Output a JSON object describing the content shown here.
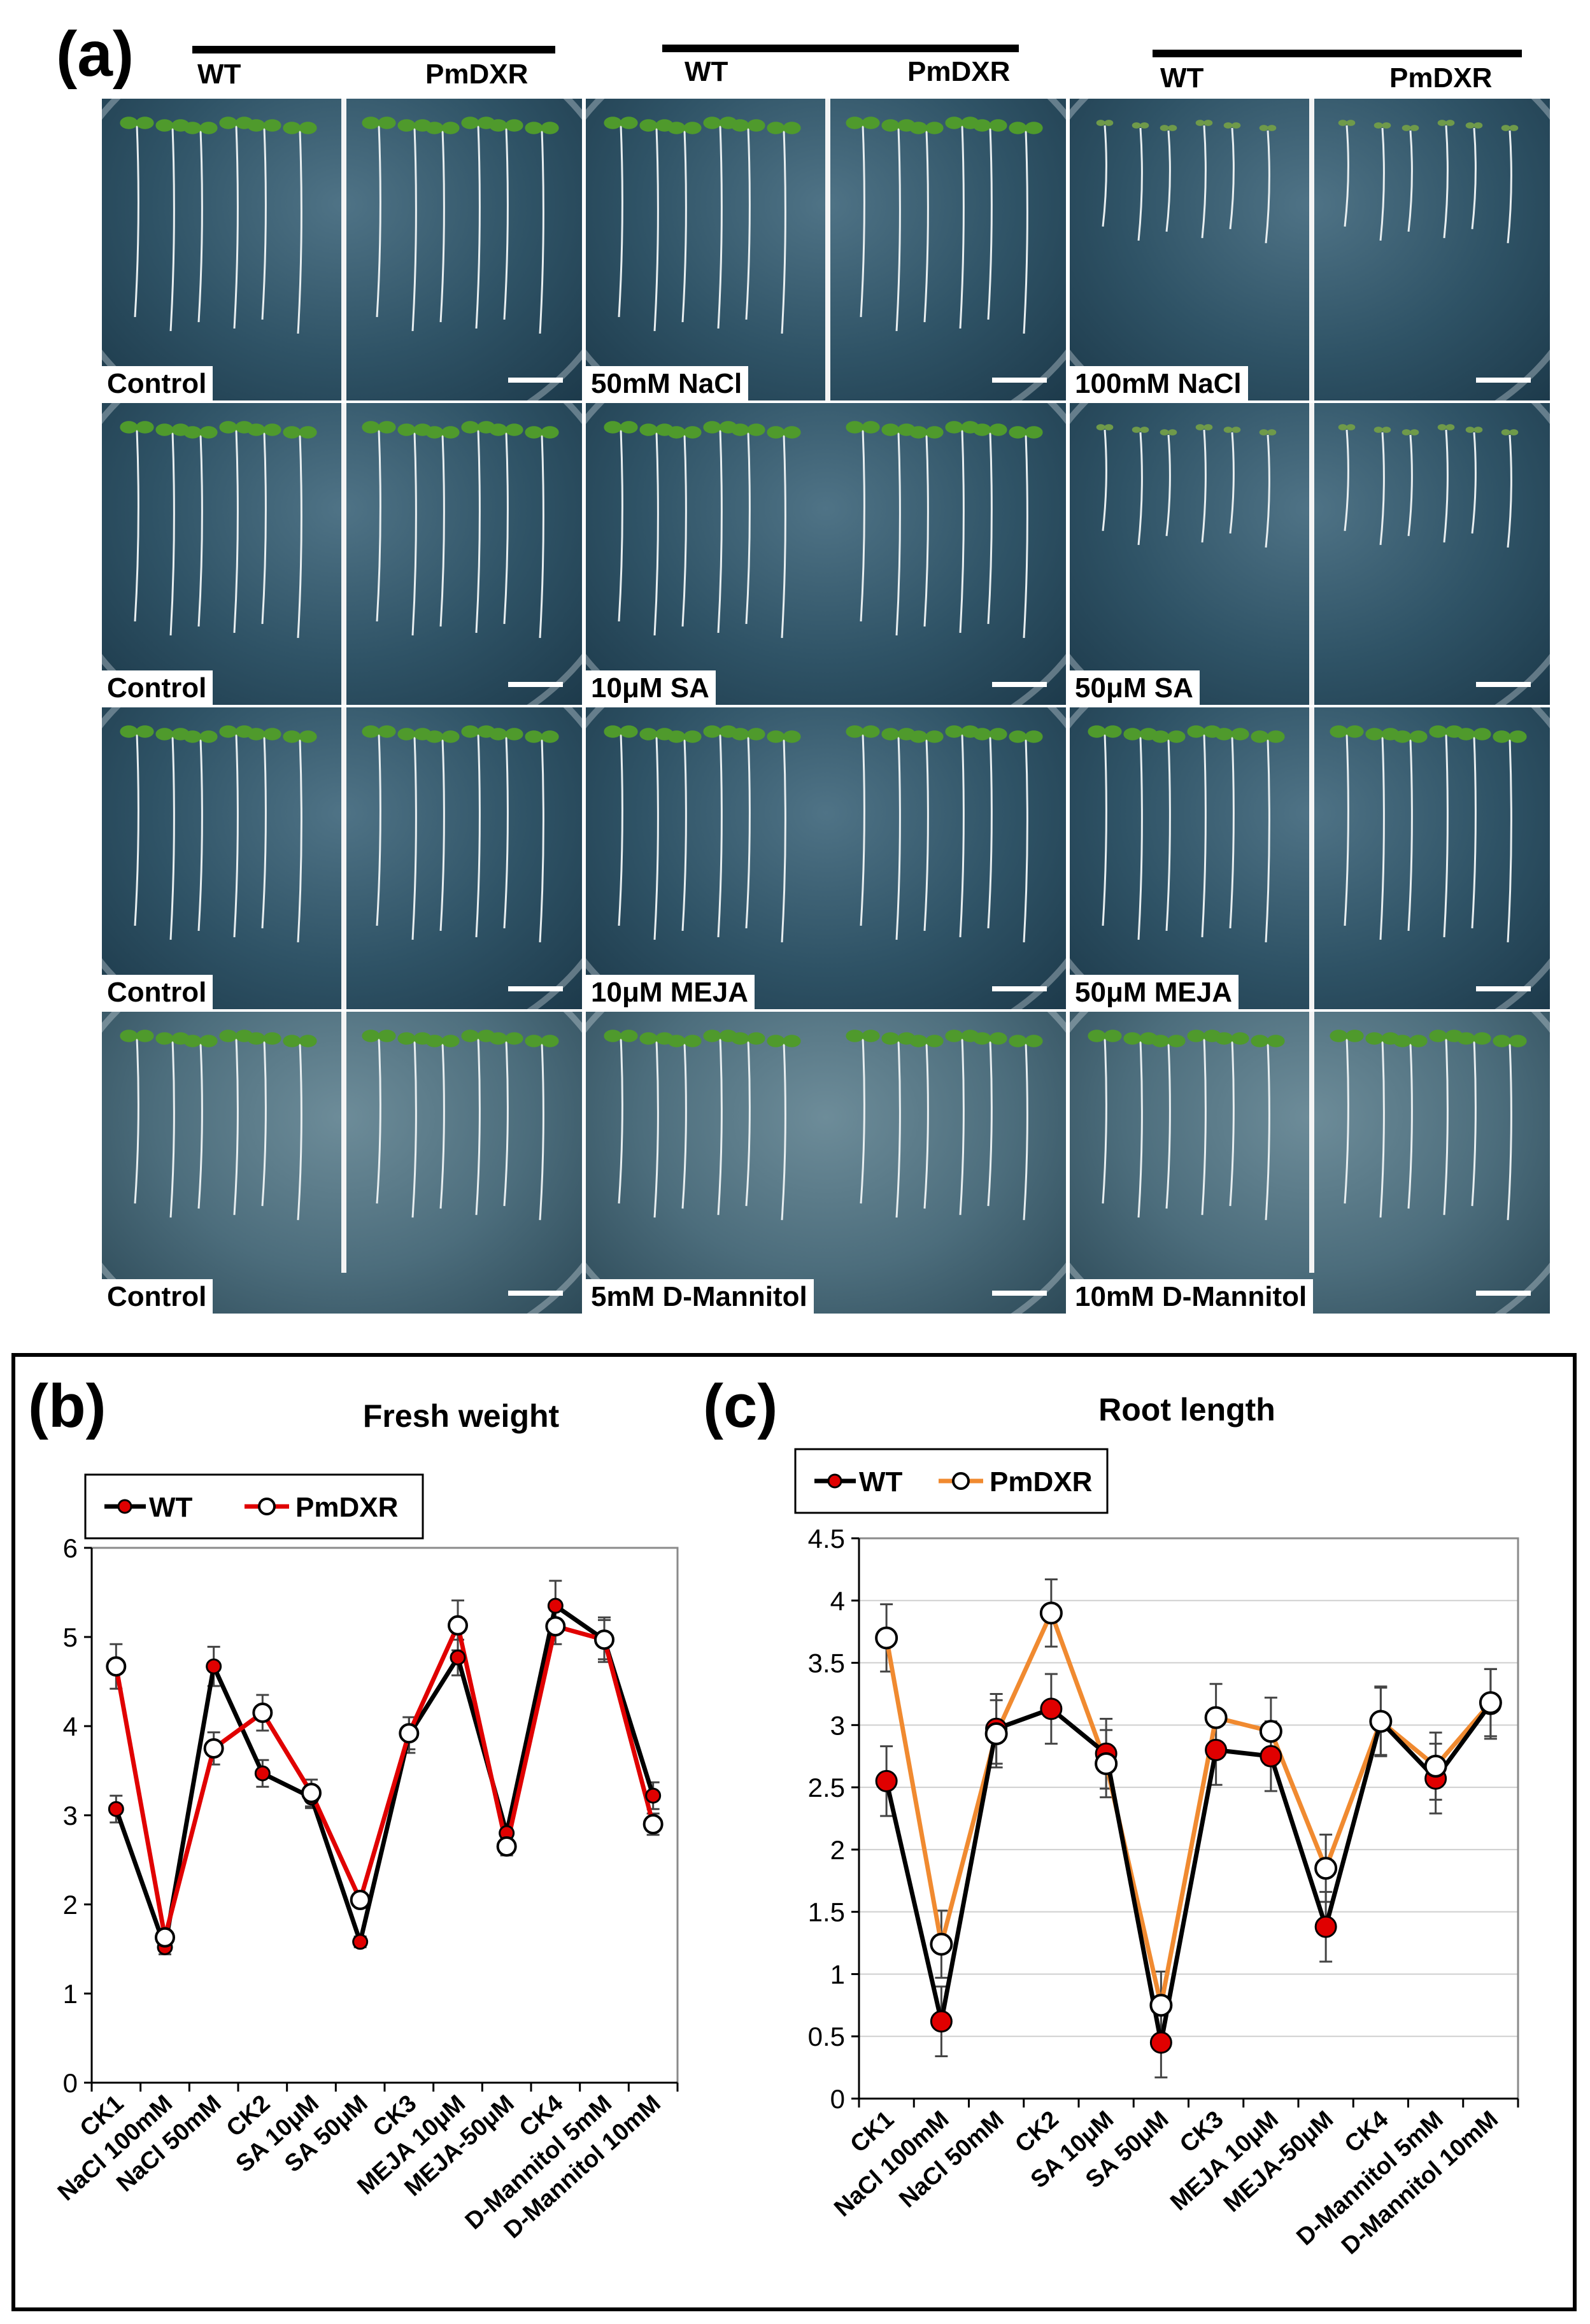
{
  "panel_a": {
    "label": "(a)",
    "groups": [
      {
        "wt_label": "WT",
        "tg_label": "PmDXR"
      },
      {
        "wt_label": "WT",
        "tg_label": "PmDXR"
      },
      {
        "wt_label": "WT",
        "tg_label": "PmDXR"
      }
    ],
    "rows": [
      [
        "Control",
        "50mM NaCl",
        "100mM NaCl"
      ],
      [
        "Control",
        "10μM SA",
        "50μM SA"
      ],
      [
        "Control",
        "10μM MEJA",
        "50μM MEJA"
      ],
      [
        "Control",
        "5mM D-Mannitol",
        "10mM D-Mannitol"
      ]
    ]
  },
  "panel_b": {
    "label": "(b)"
  },
  "panel_c": {
    "label": "(c)"
  },
  "colors": {
    "wt_line": "#000000",
    "wt_marker": "#e00000",
    "pmdxr_line_b": "#e00000",
    "pmdxr_line_c": "#f08a30",
    "pmdxr_marker": "#ffffff"
  },
  "chart_data": [
    {
      "type": "line",
      "title": "Fresh weight",
      "categories": [
        "CK1",
        "NaCl 100mM",
        "NaCl 50mM",
        "CK2",
        "SA 10μM",
        "SA 50μM",
        "CK3",
        "MEJA 10μM",
        "MEJA-50μM",
        "CK4",
        "D-Mannitol 5mM",
        "D-Mannitol 10mM"
      ],
      "ylim": [
        0,
        6
      ],
      "yticks": [
        0,
        1,
        2,
        3,
        4,
        5,
        6
      ],
      "ytick_labels": [
        "0",
        "1",
        "2",
        "3",
        "4",
        "5",
        "6"
      ],
      "grid": false,
      "legend": "top-left",
      "series": [
        {
          "name": "WT",
          "values": [
            3.07,
            1.52,
            4.67,
            3.47,
            3.2,
            1.58,
            3.9,
            4.77,
            2.8,
            5.35,
            4.97,
            3.22
          ],
          "errors": [
            0.15,
            0.08,
            0.22,
            0.15,
            0.12,
            0.06,
            0.2,
            0.2,
            0.1,
            0.28,
            0.25,
            0.15
          ]
        },
        {
          "name": "PmDXR",
          "values": [
            4.67,
            1.63,
            3.75,
            4.15,
            3.25,
            2.05,
            3.92,
            5.13,
            2.65,
            5.12,
            4.97,
            2.9
          ],
          "errors": [
            0.25,
            0.06,
            0.18,
            0.2,
            0.15,
            0.06,
            0.18,
            0.28,
            0.1,
            0.2,
            0.22,
            0.12
          ]
        }
      ]
    },
    {
      "type": "line",
      "title": "Root length",
      "categories": [
        "CK1",
        "NaCl 100mM",
        "NaCl 50mM",
        "CK2",
        "SA 10μM",
        "SA 50μM",
        "CK3",
        "MEJA 10μM",
        "MEJA-50μM",
        "CK4",
        "D-Mannitol 5mM",
        "D-Mannitol 10mM"
      ],
      "ylim": [
        0,
        4.5
      ],
      "yticks": [
        0,
        0.5,
        1,
        1.5,
        2,
        2.5,
        3,
        3.5,
        4,
        4.5
      ],
      "ytick_labels": [
        "0",
        "0.5",
        "1",
        "1.5",
        "2",
        "2.5",
        "3",
        "3.5",
        "4",
        "4.5"
      ],
      "grid": true,
      "legend": "top-left",
      "series": [
        {
          "name": "WT",
          "values": [
            2.55,
            0.62,
            2.97,
            3.13,
            2.77,
            0.45,
            2.8,
            2.75,
            1.38,
            3.03,
            2.57,
            3.17
          ],
          "errors": [
            0.28,
            0.28,
            0.28,
            0.28,
            0.28,
            0.28,
            0.28,
            0.28,
            0.28,
            0.28,
            0.28,
            0.28
          ]
        },
        {
          "name": "PmDXR",
          "values": [
            3.7,
            1.24,
            2.93,
            3.9,
            2.69,
            0.75,
            3.06,
            2.95,
            1.85,
            3.03,
            2.67,
            3.18
          ],
          "errors": [
            0.27,
            0.27,
            0.27,
            0.27,
            0.27,
            0.27,
            0.27,
            0.27,
            0.27,
            0.27,
            0.27,
            0.27
          ]
        }
      ]
    }
  ]
}
